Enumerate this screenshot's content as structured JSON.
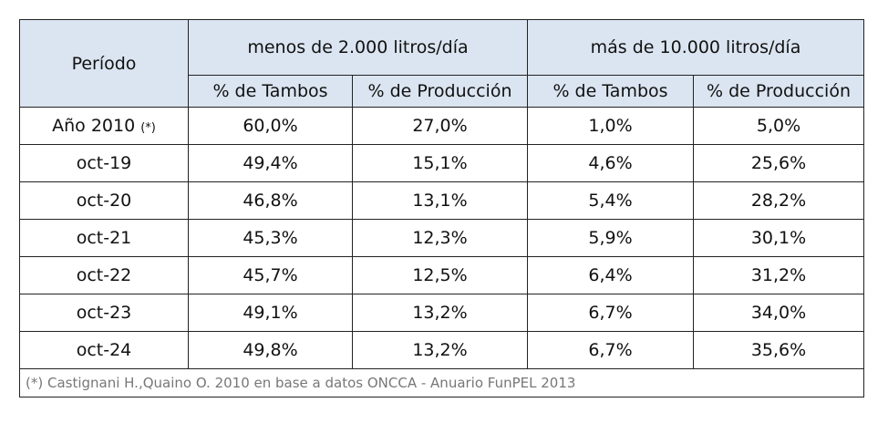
{
  "table": {
    "header": {
      "period": "Período",
      "group1": "menos de 2.000 litros/día",
      "group2": "más de 10.000 litros/día",
      "sub": [
        "% de Tambos",
        "% de Producción",
        "% de Tambos",
        "% de Producción"
      ]
    },
    "rows": [
      {
        "period": "Año 2010",
        "marker": "(*)",
        "v": [
          "60,0%",
          "27,0%",
          "1,0%",
          "5,0%"
        ]
      },
      {
        "period": "oct-19",
        "v": [
          "49,4%",
          "15,1%",
          "4,6%",
          "25,6%"
        ]
      },
      {
        "period": "oct-20",
        "v": [
          "46,8%",
          "13,1%",
          "5,4%",
          "28,2%"
        ]
      },
      {
        "period": "oct-21",
        "v": [
          "45,3%",
          "12,3%",
          "5,9%",
          "30,1%"
        ]
      },
      {
        "period": "oct-22",
        "v": [
          "45,7%",
          "12,5%",
          "6,4%",
          "31,2%"
        ]
      },
      {
        "period": "oct-23",
        "v": [
          "49,1%",
          "13,2%",
          "6,7%",
          "34,0%"
        ]
      },
      {
        "period": "oct-24",
        "v": [
          "49,8%",
          "13,2%",
          "6,7%",
          "35,6%"
        ]
      }
    ],
    "note": "(*) Castignani H.,Quaino O. 2010 en base a datos ONCCA - Anuario FunPEL 2013"
  }
}
